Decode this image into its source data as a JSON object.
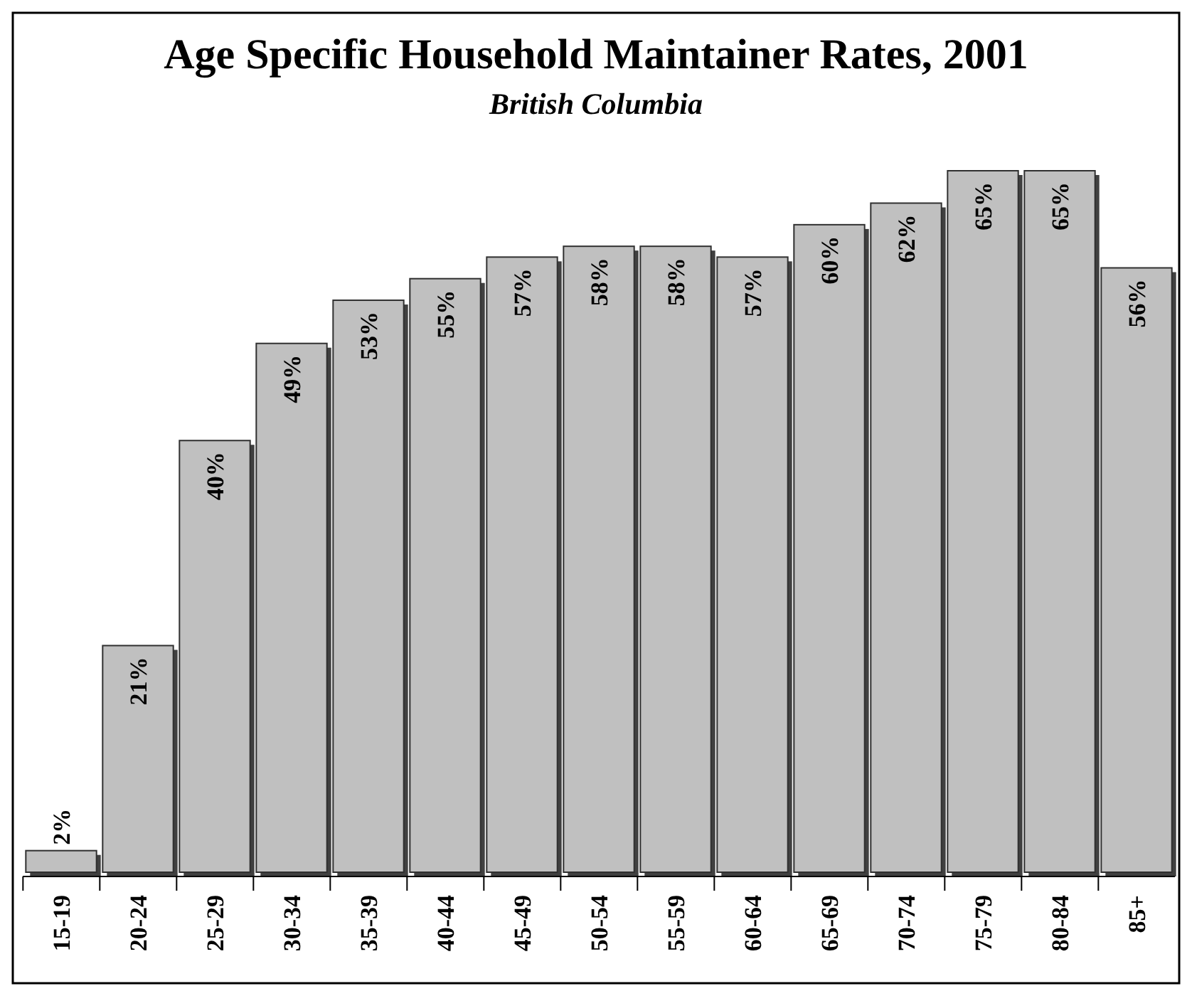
{
  "chart_data": {
    "type": "bar",
    "title": "Age Specific Household Maintainer Rates, 2001",
    "subtitle": "British Columbia",
    "categories": [
      "15-19",
      "20-24",
      "25-29",
      "30-34",
      "35-39",
      "40-44",
      "45-49",
      "50-54",
      "55-59",
      "60-64",
      "65-69",
      "70-74",
      "75-79",
      "80-84",
      "85+"
    ],
    "values": [
      2,
      21,
      40,
      49,
      53,
      55,
      57,
      58,
      58,
      57,
      60,
      62,
      65,
      65,
      56
    ],
    "value_labels": [
      "2%",
      "21%",
      "40%",
      "49%",
      "53%",
      "55%",
      "57%",
      "58%",
      "58%",
      "57%",
      "60%",
      "62%",
      "65%",
      "65%",
      "56%"
    ],
    "color": "#c0c0c0"
  }
}
